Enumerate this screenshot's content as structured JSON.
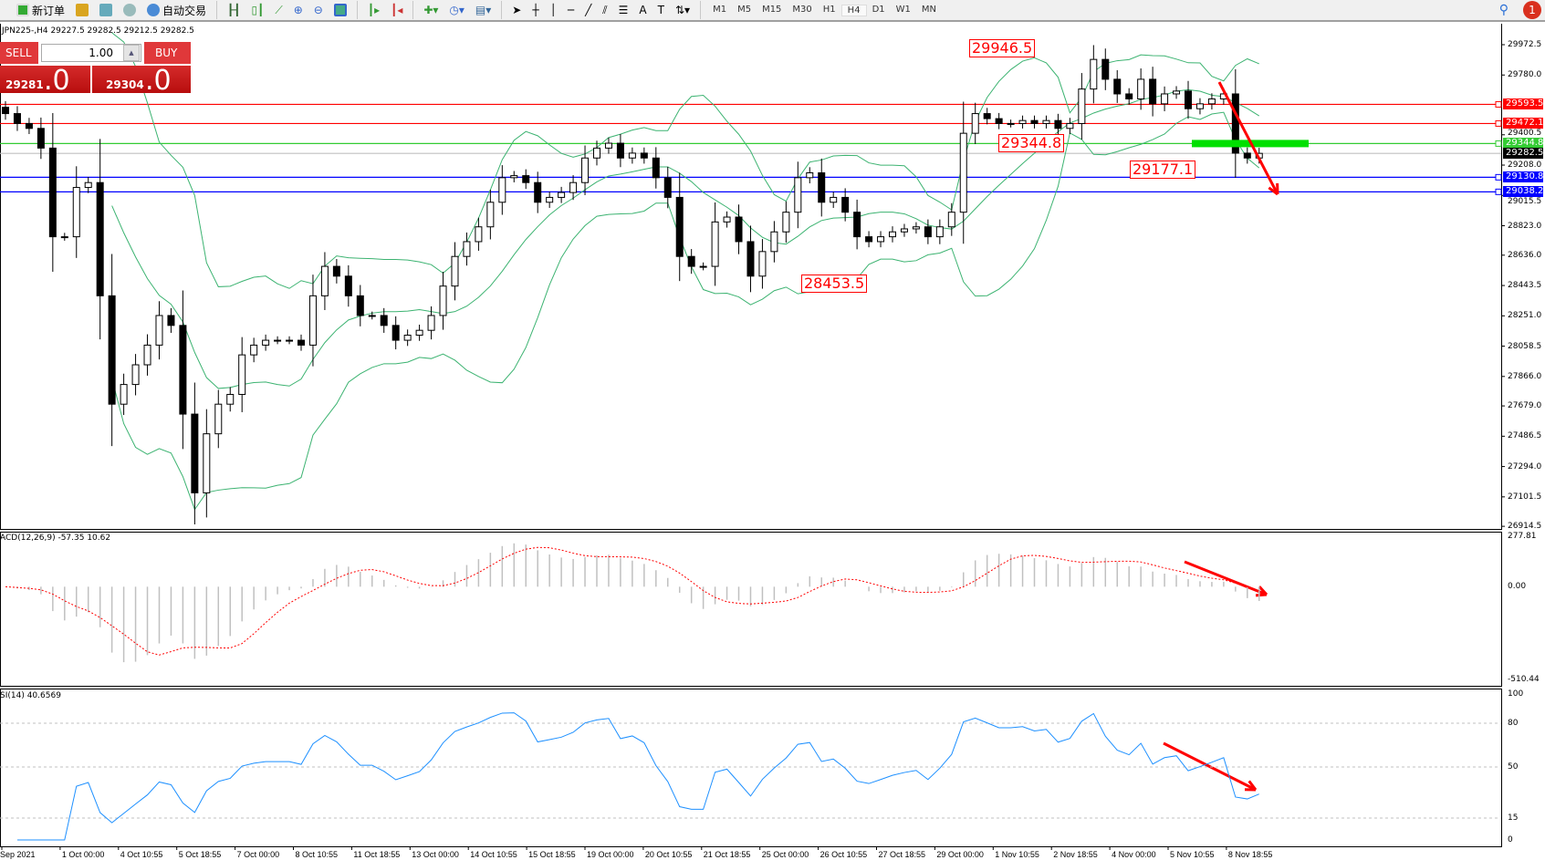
{
  "toolbar": {
    "new_order": "新订单",
    "auto_trading": "自动交易",
    "timeframes": [
      "M1",
      "M5",
      "M15",
      "M30",
      "H1",
      "H4",
      "D1",
      "W1",
      "MN"
    ],
    "active_timeframe": "H4",
    "notifications": "1"
  },
  "chart_header": "JPN225-,H4  29227.5 29282.5 29212.5 29282.5",
  "one_click": {
    "sell": "SELL",
    "buy": "BUY",
    "lots": "1.00",
    "sell_big": "29281",
    "sell_frac": ".0",
    "buy_big": "29304",
    "buy_frac": ".0"
  },
  "annotations": [
    {
      "text": "29946.5",
      "price": 29946.5
    },
    {
      "text": "29344.8",
      "price": 29344.8
    },
    {
      "text": "28453.5",
      "price": 28453.5
    },
    {
      "text": "29177.1",
      "price": 29177.1
    }
  ],
  "hlines": [
    {
      "price": "29593.5",
      "color": "#ff0000"
    },
    {
      "price": "29472.1",
      "color": "#ff0000"
    },
    {
      "price": "29344.8",
      "color": "#33cc33"
    },
    {
      "price": "29282.5",
      "color": "#000000",
      "line": "#c0c0c0"
    },
    {
      "price": "29130.8",
      "color": "#0000ff"
    },
    {
      "price": "29038.2",
      "color": "#0000ff"
    }
  ],
  "price_ticks": [
    "29972.5",
    "29780.0",
    "29400.5",
    "29208.0",
    "29015.5",
    "28823.0",
    "28636.0",
    "28443.5",
    "28251.0",
    "28058.5",
    "27866.0",
    "27679.0",
    "27486.5",
    "27294.0",
    "27101.5",
    "26914.5"
  ],
  "time_labels": [
    "Sep 2021",
    "1 Oct 00:00",
    "4 Oct 10:55",
    "5 Oct 18:55",
    "7 Oct 00:00",
    "8 Oct 10:55",
    "11 Oct 18:55",
    "13 Oct 00:00",
    "14 Oct 10:55",
    "15 Oct 18:55",
    "19 Oct 00:00",
    "20 Oct 10:55",
    "21 Oct 18:55",
    "25 Oct 00:00",
    "26 Oct 10:55",
    "27 Oct 18:55",
    "29 Oct 00:00",
    "1 Nov 10:55",
    "2 Nov 18:55",
    "4 Nov 00:00",
    "5 Nov 10:55",
    "8 Nov 18:55"
  ],
  "macd": {
    "label": "ACD(12,26,9) -57.35 10.62",
    "ticks": [
      "277.81",
      "0.00",
      "-510.44"
    ],
    "hist_color": "#c0c0c0",
    "signal_color": "#ff0000"
  },
  "rsi": {
    "label": "SI(14) 40.6569",
    "ticks": [
      "100",
      "80",
      "50",
      "15",
      "0"
    ],
    "color": "#1e90ff"
  },
  "chart_data": {
    "type": "candlestick",
    "symbol": "JPN225-",
    "timeframe": "H4",
    "ylim": [
      26914.5,
      29972.5
    ],
    "bollinger_color": "#3cb371",
    "up_color": "#ffffff",
    "down_color": "#000000",
    "close": [
      29535,
      29472,
      29441,
      29316,
      28753,
      28753,
      29066,
      29097,
      28378,
      27690,
      27815,
      27940,
      28065,
      28253,
      28190,
      27627,
      27127,
      27502,
      27690,
      27752,
      28003,
      28065,
      28096,
      28096,
      28096,
      28065,
      28378,
      28565,
      28503,
      28378,
      28253,
      28253,
      28190,
      28096,
      28128,
      28159,
      28253,
      28440,
      28628,
      28722,
      28816,
      28972,
      29128,
      29141,
      29097,
      28972,
      29003,
      29034,
      29097,
      29253,
      29316,
      29347,
      29253,
      29284,
      29253,
      29128,
      29003,
      28628,
      28565,
      28565,
      28847,
      28878,
      28722,
      28503,
      28659,
      28784,
      28909,
      29128,
      29159,
      28972,
      29003,
      28909,
      28753,
      28722,
      28753,
      28784,
      28803,
      28816,
      28753,
      28816,
      28909,
      29410,
      29535,
      29503,
      29472,
      29472,
      29491,
      29472,
      29491,
      29441,
      29472,
      29691,
      29879,
      29753,
      29660,
      29628,
      29753,
      29597,
      29660,
      29678,
      29566,
      29597,
      29628,
      29660,
      29284,
      29253,
      29282.5
    ]
  }
}
